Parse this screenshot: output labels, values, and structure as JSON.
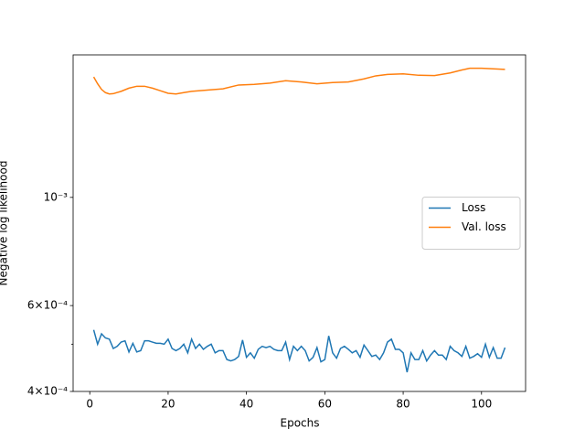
{
  "chart_data": {
    "type": "line",
    "xlabel": "Epochs",
    "ylabel": "Negative log likelihood",
    "xlim": [
      -4.25,
      111.25
    ],
    "xticks": [
      0,
      20,
      40,
      60,
      80,
      100
    ],
    "ylim": [
      0.0004,
      0.00196
    ],
    "log_y": true,
    "yticks": [
      {
        "value": 0.0004,
        "label": "4×10⁻⁴"
      },
      {
        "value": 0.0006,
        "label": "6×10⁻⁴"
      },
      {
        "value": 0.001,
        "label": "10⁻³"
      }
    ],
    "minor_yticks": [
      0.0005
    ],
    "legend": "center right",
    "series": [
      {
        "name": "Loss",
        "color": "#1f77b4",
        "x": [
          1,
          2,
          3,
          4,
          5,
          6,
          7,
          8,
          9,
          10,
          11,
          12,
          13,
          14,
          15,
          16,
          17,
          18,
          19,
          20,
          21,
          22,
          23,
          24,
          25,
          26,
          27,
          28,
          29,
          30,
          31,
          32,
          33,
          34,
          35,
          36,
          37,
          38,
          39,
          40,
          41,
          42,
          43,
          44,
          45,
          46,
          47,
          48,
          49,
          50,
          51,
          52,
          53,
          54,
          55,
          56,
          57,
          58,
          59,
          60,
          61,
          62,
          63,
          64,
          65,
          66,
          67,
          68,
          69,
          70,
          71,
          72,
          73,
          74,
          75,
          76,
          77,
          78,
          79,
          80,
          81,
          82,
          83,
          84,
          85,
          86,
          87,
          88,
          89,
          90,
          91,
          92,
          93,
          94,
          95,
          96,
          97,
          98,
          99,
          100,
          101,
          102,
          103,
          104,
          105,
          106
        ],
        "values": [
          0.000535,
          0.0005,
          0.000525,
          0.000515,
          0.000512,
          0.00049,
          0.000495,
          0.000505,
          0.000508,
          0.000482,
          0.000502,
          0.000482,
          0.000485,
          0.000508,
          0.000508,
          0.000505,
          0.000502,
          0.000502,
          0.0005,
          0.000512,
          0.00049,
          0.000485,
          0.00049,
          0.0005,
          0.00048,
          0.000512,
          0.00049,
          0.0005,
          0.000488,
          0.000495,
          0.0005,
          0.00048,
          0.000485,
          0.000485,
          0.000465,
          0.000462,
          0.000465,
          0.000472,
          0.00051,
          0.00047,
          0.00048,
          0.000468,
          0.000488,
          0.000495,
          0.000492,
          0.000495,
          0.000488,
          0.000485,
          0.000485,
          0.000505,
          0.000465,
          0.000495,
          0.000485,
          0.000495,
          0.000485,
          0.000462,
          0.00047,
          0.000492,
          0.00046,
          0.000465,
          0.00052,
          0.00048,
          0.000468,
          0.00049,
          0.000495,
          0.000488,
          0.00048,
          0.000485,
          0.00047,
          0.000498,
          0.000485,
          0.000472,
          0.000475,
          0.000465,
          0.00048,
          0.000505,
          0.000512,
          0.000488,
          0.000488,
          0.00048,
          0.000438,
          0.00048,
          0.000465,
          0.000465,
          0.000485,
          0.000462,
          0.000475,
          0.000485,
          0.000475,
          0.000475,
          0.000465,
          0.000495,
          0.000485,
          0.00048,
          0.000472,
          0.000495,
          0.000468,
          0.000472,
          0.000478,
          0.00047,
          0.0005,
          0.00047,
          0.000492,
          0.000468,
          0.000468,
          0.000492
        ]
      },
      {
        "name": "Val. loss",
        "color": "#ff7f0e",
        "x": [
          1,
          2,
          3,
          4,
          5,
          6,
          8,
          10,
          12,
          14,
          16,
          18,
          20,
          22,
          24,
          26,
          30,
          34,
          38,
          42,
          46,
          50,
          54,
          58,
          62,
          66,
          70,
          73,
          76,
          80,
          84,
          88,
          92,
          95,
          97,
          100,
          103,
          106
        ],
        "values": [
          0.001766,
          0.00171,
          0.001665,
          0.00164,
          0.00163,
          0.001632,
          0.00165,
          0.001675,
          0.00169,
          0.00169,
          0.001675,
          0.001655,
          0.001635,
          0.00163,
          0.00164,
          0.00165,
          0.00166,
          0.00167,
          0.0017,
          0.001705,
          0.001715,
          0.001735,
          0.001725,
          0.00171,
          0.00172,
          0.001725,
          0.00175,
          0.001775,
          0.001787,
          0.001792,
          0.00178,
          0.001778,
          0.0018,
          0.001825,
          0.00184,
          0.00184,
          0.001835,
          0.00183
        ]
      }
    ]
  }
}
